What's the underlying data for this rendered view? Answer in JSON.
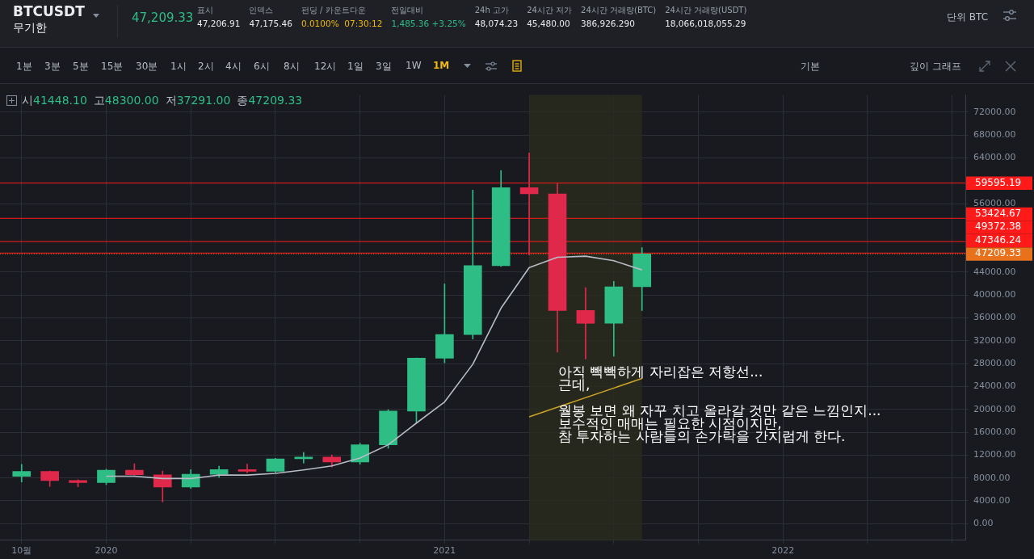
{
  "chart_data": {
    "type": "candlestick",
    "title": "BTCUSDT",
    "subtitle": "무기한",
    "x": [
      "2019-10",
      "2019-11",
      "2019-12",
      "2020-01",
      "2020-02",
      "2020-03",
      "2020-04",
      "2020-05",
      "2020-06",
      "2020-07",
      "2020-08",
      "2020-09",
      "2020-10",
      "2020-11",
      "2020-12",
      "2021-01",
      "2021-02",
      "2021-03",
      "2021-04",
      "2021-05",
      "2021-06",
      "2021-07",
      "2021-08"
    ],
    "ohlc": [
      [
        8300,
        10370,
        7300,
        9150
      ],
      [
        9150,
        9200,
        6500,
        7550
      ],
      [
        7550,
        7700,
        6430,
        7200
      ],
      [
        7200,
        9550,
        6850,
        9350
      ],
      [
        9350,
        10500,
        8450,
        8550
      ],
      [
        8550,
        9200,
        3800,
        6400
      ],
      [
        6400,
        9450,
        6150,
        8650
      ],
      [
        8650,
        10080,
        8100,
        9450
      ],
      [
        9450,
        10400,
        8900,
        9150
      ],
      [
        9150,
        11450,
        8950,
        11350
      ],
      [
        11350,
        12450,
        10600,
        11650
      ],
      [
        11650,
        12050,
        9900,
        10800
      ],
      [
        10800,
        14100,
        10400,
        13800
      ],
      [
        13800,
        19950,
        13200,
        19700
      ],
      [
        19700,
        29000,
        17600,
        28950
      ],
      [
        28950,
        41950,
        28150,
        33100
      ],
      [
        33100,
        58350,
        32300,
        45150
      ],
      [
        45150,
        61800,
        45000,
        58800
      ],
      [
        58800,
        64850,
        47000,
        57700
      ],
      [
        57700,
        59500,
        30000,
        37300
      ],
      [
        37300,
        41300,
        28800,
        35050
      ],
      [
        35050,
        42400,
        29300,
        41450
      ],
      [
        41448.1,
        48300,
        37291,
        47209.33
      ]
    ],
    "colors": [
      "#2ebd85",
      "#e0294a",
      "#e0294a",
      "#2ebd85",
      "#e0294a",
      "#e0294a",
      "#2ebd85",
      "#2ebd85",
      "#e0294a",
      "#2ebd85",
      "#2ebd85",
      "#e0294a",
      "#2ebd85",
      "#2ebd85",
      "#2ebd85",
      "#2ebd85",
      "#2ebd85",
      "#2ebd85",
      "#e0294a",
      "#e0294a",
      "#e0294a",
      "#2ebd85",
      "#2ebd85"
    ],
    "series": [
      {
        "type": "line",
        "color": "#b7bdc6",
        "x": [
          "2020-01",
          "2020-02",
          "2020-03",
          "2020-04",
          "2020-05",
          "2020-06",
          "2020-07",
          "2020-08",
          "2020-09",
          "2020-10",
          "2020-11",
          "2020-12",
          "2021-01",
          "2021-02",
          "2021-03",
          "2021-04",
          "2021-05",
          "2021-06",
          "2021-07",
          "2021-08"
        ],
        "values": [
          8300,
          8300,
          7900,
          7900,
          8500,
          8500,
          8800,
          9400,
          10100,
          11500,
          13800,
          17600,
          21300,
          27900,
          37700,
          44800,
          46600,
          46800,
          46000,
          44400
        ]
      },
      {
        "type": "line",
        "color": "#c9a227",
        "x": [
          "2021-04",
          "2021-08"
        ],
        "values": [
          18700,
          25400
        ]
      }
    ],
    "xlim": [
      "2019-09-08",
      "2022-07-15"
    ],
    "xticks": [
      {
        "value": "2019-10",
        "label": "10월"
      },
      {
        "value": "2020-01",
        "label": "2020"
      },
      {
        "value": "2020-04",
        "label": null
      },
      {
        "value": "2020-07",
        "label": null
      },
      {
        "value": "2020-10",
        "label": null
      },
      {
        "value": "2021-01",
        "label": "2021"
      },
      {
        "value": "2021-04",
        "label": null
      },
      {
        "value": "2021-07",
        "label": null
      },
      {
        "value": "2021-10",
        "label": null
      },
      {
        "value": "2022-01",
        "label": "2022"
      },
      {
        "value": "2022-04",
        "label": null
      },
      {
        "value": "2022-07",
        "label": null
      }
    ],
    "ylim": [
      -2900,
      75000
    ],
    "yticks": [
      {
        "value": 0,
        "label": "0.00"
      },
      {
        "value": 4000,
        "label": "4000.00"
      },
      {
        "value": 8000,
        "label": "8000.00"
      },
      {
        "value": 12000,
        "label": "12000.00"
      },
      {
        "value": 16000,
        "label": "16000.00"
      },
      {
        "value": 20000,
        "label": "20000.00"
      },
      {
        "value": 24000,
        "label": "24000.00"
      },
      {
        "value": 28000,
        "label": "28000.00"
      },
      {
        "value": 32000,
        "label": "32000.00"
      },
      {
        "value": 36000,
        "label": "36000.00"
      },
      {
        "value": 40000,
        "label": "40000.00"
      },
      {
        "value": 44000,
        "label": "44000.00"
      },
      {
        "value": 56000,
        "label": "56000.00"
      },
      {
        "value": 64000,
        "label": "64000.00"
      },
      {
        "value": 68000,
        "label": "68000.00"
      },
      {
        "value": 72000,
        "label": "72000.00"
      }
    ],
    "grid": true,
    "ref_lines": [
      {
        "axis": "y",
        "value": 59595.19,
        "label": "59595.19",
        "color": "#ff1a1a",
        "line_style": "solid"
      },
      {
        "axis": "y",
        "value": 53424.67,
        "label": "53424.67",
        "color": "#ff1a1a",
        "line_style": "solid"
      },
      {
        "axis": "y",
        "value": 49372.38,
        "label": "49372.38",
        "color": "#ff1a1a",
        "line_style": "solid"
      },
      {
        "axis": "y",
        "value": 47346.24,
        "label": "47346.24",
        "color": "#ff1a1a",
        "line_style": "solid"
      },
      {
        "axis": "y",
        "value": 47209.33,
        "label": "47209.33",
        "color": "#e8711c",
        "line_style": "dotted"
      }
    ],
    "bands": [
      {
        "axis": "x",
        "from": "2021-04",
        "to": "2021-08",
        "color": "#2a2c1e"
      }
    ],
    "annotations": [
      "47,209.33",
      "표시\n47,206.91",
      "인덱스\n47,175.46",
      "펀딩 / 카운트다운\n0.0100%  07:30:12",
      "전일대비\n1,485.36 +3.25%",
      "24h 고가\n48,074.23",
      "24시간 저가\n45,480.00",
      "24시간 거래량(BTC)\n386,926.290",
      "24시간 거래량(USDT)\n18,066,018,055.29",
      "단위 BTC",
      "1분",
      "3분",
      "5분",
      "15분",
      "30분",
      "1시",
      "2시",
      "4시",
      "6시",
      "8시",
      "12시",
      "1일",
      "3일",
      "1W",
      "1M",
      "기본",
      "깊이 그래프",
      "시41448.10 고48300.00 저37291.00 종47209.33",
      "아직 빽빽하게 자리잡은 저항선...\n근데,\n\n월봉 보면 왜 자꾸 치고 올라갈 것만 같은 느낌인지...\n보수적인 매매는 필요한 시점이지만,\n참 투자하는 사람들의 손가락을 간지럽게 한다."
    ]
  }
}
